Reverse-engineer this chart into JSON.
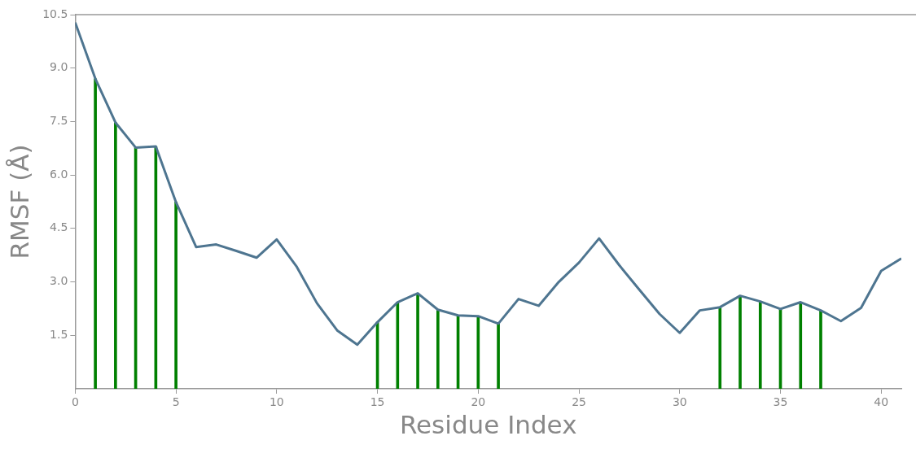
{
  "chart_data": {
    "type": "line",
    "xlabel": "Residue Index",
    "ylabel": "RMSF (Å)",
    "x": [
      0,
      1,
      2,
      3,
      4,
      5,
      6,
      7,
      8,
      9,
      10,
      11,
      12,
      13,
      14,
      15,
      16,
      17,
      18,
      19,
      20,
      21,
      22,
      23,
      24,
      25,
      26,
      27,
      28,
      29,
      30,
      31,
      32,
      33,
      34,
      35,
      36,
      37,
      38,
      39,
      40,
      41
    ],
    "series": [
      {
        "color": "#4e7590",
        "values": [
          10.28,
          8.7,
          7.47,
          6.77,
          6.8,
          5.24,
          3.98,
          4.05,
          3.87,
          3.68,
          4.19,
          3.42,
          2.4,
          1.64,
          1.24,
          1.87,
          2.43,
          2.68,
          2.22,
          2.06,
          2.04,
          1.83,
          2.52,
          2.33,
          3.0,
          3.54,
          4.22,
          3.47,
          2.78,
          2.1,
          1.57,
          2.2,
          2.29,
          2.61,
          2.45,
          2.24,
          2.43,
          2.2,
          1.9,
          2.27,
          3.31,
          3.66
        ]
      },
      {
        "type": "bar",
        "color": "#008000",
        "values": [
          null,
          8.7,
          7.47,
          6.77,
          6.8,
          5.24,
          null,
          null,
          null,
          null,
          null,
          null,
          null,
          null,
          null,
          1.87,
          2.43,
          2.68,
          2.22,
          2.06,
          2.04,
          1.83,
          null,
          null,
          null,
          null,
          null,
          null,
          null,
          null,
          null,
          null,
          2.29,
          2.61,
          2.45,
          2.24,
          2.43,
          2.2,
          null,
          null,
          null,
          null
        ]
      }
    ],
    "xlim": [
      0,
      41
    ],
    "xticks": [
      0,
      5,
      10,
      15,
      20,
      25,
      30,
      35,
      40
    ],
    "ylim": [
      0,
      10.5
    ],
    "yticks": [
      {
        "value": 1.5,
        "label": "1.5"
      },
      {
        "value": 3,
        "label": "3.0"
      },
      {
        "value": 4.5,
        "label": "4.5"
      },
      {
        "value": 6,
        "label": "6.0"
      },
      {
        "value": 7.5,
        "label": "7.5"
      },
      {
        "value": 9,
        "label": "9.0"
      },
      {
        "value": 10.5,
        "label": "10.5"
      }
    ],
    "grid": false,
    "legend": false,
    "marker": "none",
    "line_style": "solid"
  }
}
